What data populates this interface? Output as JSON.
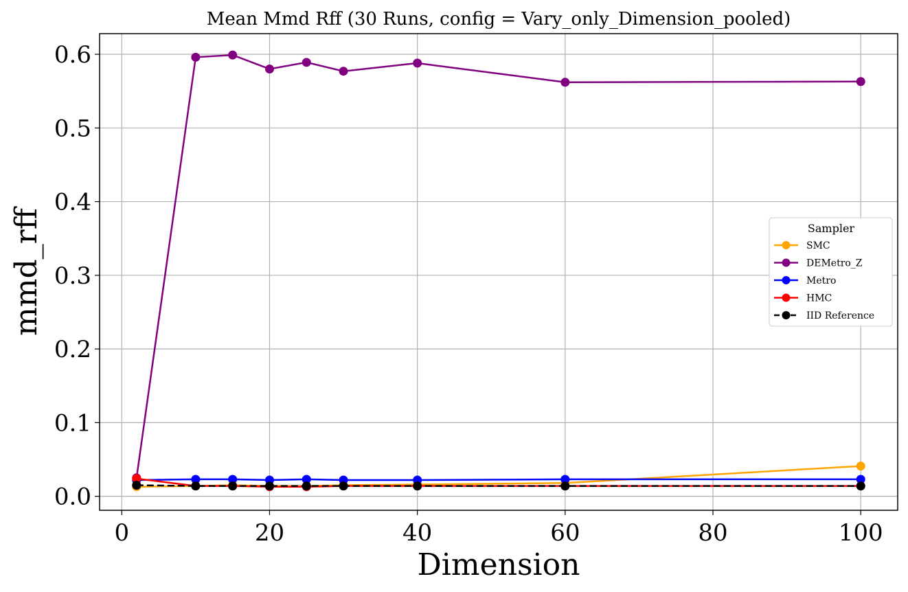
{
  "chart_data": {
    "type": "line",
    "title": "Mean Mmd Rff (30 Runs, config = Vary_only_Dimension_pooled)",
    "xlabel": "Dimension",
    "ylabel": "mmd_rff",
    "xlim": [
      -3,
      105
    ],
    "ylim": [
      -0.019,
      0.628
    ],
    "xticks": [
      0,
      20,
      40,
      60,
      80,
      100
    ],
    "yticks": [
      0.0,
      0.1,
      0.2,
      0.3,
      0.4,
      0.5,
      0.6
    ],
    "xtick_labels": [
      "0",
      "20",
      "40",
      "60",
      "80",
      "100"
    ],
    "ytick_labels": [
      "0.0",
      "0.1",
      "0.2",
      "0.3",
      "0.4",
      "0.5",
      "0.6"
    ],
    "grid": true,
    "legend": {
      "title": "Sampler",
      "placement": "center-right"
    },
    "x": [
      2,
      10,
      15,
      20,
      25,
      30,
      40,
      60,
      100
    ],
    "series": [
      {
        "name": "SMC",
        "color": "#ffa500",
        "dashed": false,
        "values": [
          0.013,
          0.014,
          0.015,
          0.014,
          0.014,
          0.015,
          0.016,
          0.018,
          0.041
        ]
      },
      {
        "name": "DEMetro_Z",
        "color": "#800080",
        "dashed": false,
        "values": [
          0.025,
          0.596,
          0.599,
          0.58,
          0.589,
          0.577,
          0.588,
          0.562,
          0.563
        ]
      },
      {
        "name": "Metro",
        "color": "#0000ff",
        "dashed": false,
        "values": [
          0.022,
          0.023,
          0.023,
          0.022,
          0.023,
          0.022,
          0.022,
          0.023,
          0.023
        ]
      },
      {
        "name": "HMC",
        "color": "#ff0000",
        "dashed": false,
        "values": [
          0.024,
          0.014,
          0.014,
          0.013,
          0.013,
          0.014,
          0.014,
          0.014,
          0.014
        ]
      },
      {
        "name": "IID Reference",
        "color": "#000000",
        "dashed": true,
        "values": [
          0.015,
          0.014,
          0.014,
          0.014,
          0.014,
          0.014,
          0.014,
          0.014,
          0.014
        ]
      }
    ]
  }
}
